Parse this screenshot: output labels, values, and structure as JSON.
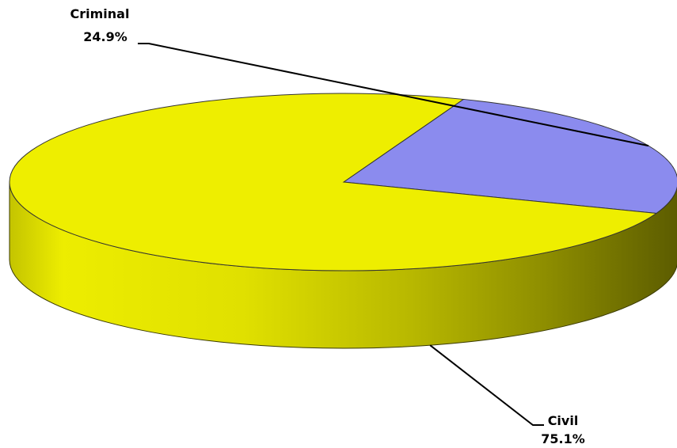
{
  "chart_data": {
    "type": "pie",
    "style": "3d",
    "categories": [
      "Criminal",
      "Civil"
    ],
    "values": [
      24.9,
      75.1
    ],
    "value_labels": [
      "24.9%",
      "75.1%"
    ],
    "colors": [
      "#8B8BEE",
      "#EEEE00"
    ],
    "legend": "none",
    "title": ""
  }
}
